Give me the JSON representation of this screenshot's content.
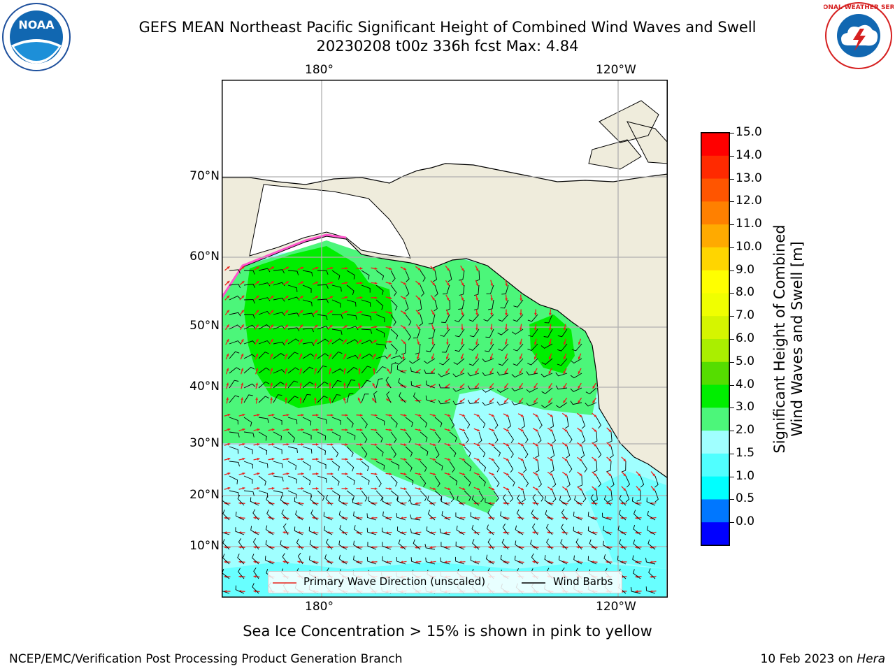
{
  "title_line1": "GEFS MEAN Northeast Pacific Significant Height of Combined Wind Waves and Swell",
  "title_line2": "20230208 t00z 336h fcst   Max: 4.84",
  "map": {
    "lon_labels_top": [
      "180°",
      "120°W"
    ],
    "lon_labels_bottom": [
      "180°",
      "120°W"
    ],
    "lat_labels": [
      "70°N",
      "60°N",
      "50°N",
      "40°N",
      "30°N",
      "20°N",
      "10°N"
    ],
    "legend": {
      "wave_label": "Primary Wave Direction (unscaled)",
      "barb_label": "Wind Barbs",
      "wave_color": "#e8201a",
      "barb_color": "#000000"
    },
    "land_color": "#efecdc"
  },
  "colorbar": {
    "title_line1": "Significant Height of Combined",
    "title_line2": "Wind Waves and Swell [m]",
    "ticks": [
      "15.0",
      "14.0",
      "13.0",
      "12.0",
      "11.0",
      "10.0",
      "9.0",
      "8.0",
      "7.0",
      "6.0",
      "5.0",
      "4.0",
      "3.0",
      "2.0",
      "1.5",
      "1.0",
      "0.5",
      "0.0"
    ],
    "colors_top_to_bottom": [
      "#ff0000",
      "#ff2a00",
      "#ff5500",
      "#ff8000",
      "#ffaa00",
      "#ffd500",
      "#ffff00",
      "#f0ff00",
      "#d5f500",
      "#aaee00",
      "#55dd00",
      "#00ee00",
      "#4cf67a",
      "#a0ffff",
      "#50ffff",
      "#00ffff",
      "#0077ff",
      "#0000ff"
    ]
  },
  "note": "Sea Ice Concentration > 15% is shown in pink to yellow",
  "footer_left": "NCEP/EMC/Verification Post Processing Product Generation Branch",
  "footer_right_prefix": "10 Feb 2023 on ",
  "footer_right_italic": "Hera",
  "logos": {
    "left": "NOAA",
    "right_text": "NATIONAL WEATHER SERVICE"
  }
}
